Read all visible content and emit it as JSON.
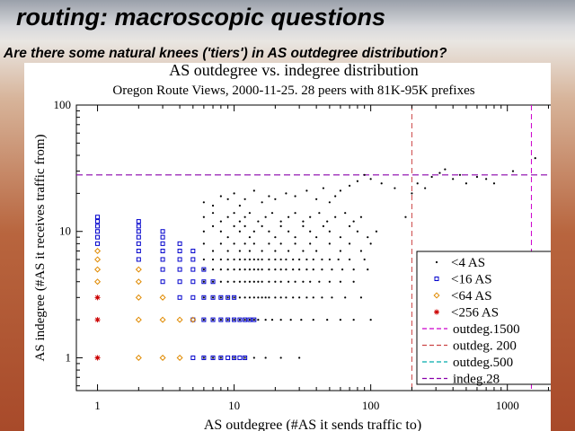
{
  "slide": {
    "title": "routing: macroscopic questions",
    "subtitle": "Are there some natural knees ('tiers') in AS outdegree distribution?"
  },
  "chart_data": {
    "type": "scatter",
    "title": "AS outdegree vs. indegree distribution",
    "subtitle": "Oregon Route Views, 2000-11-25. 28 peers with 81K-95K  prefixes",
    "xlabel": "AS outdegree (#AS it sends traffic to)",
    "ylabel": "AS indegree (#AS it receives traffic from)",
    "x_scale": "log",
    "y_scale": "log",
    "xlim": [
      0.7,
      2900
    ],
    "ylim": [
      0.55,
      100
    ],
    "x_ticks": [
      {
        "value": 1,
        "label": "1"
      },
      {
        "value": 10,
        "label": "10"
      },
      {
        "value": 100,
        "label": "100"
      },
      {
        "value": 1000,
        "label": "1000"
      }
    ],
    "y_ticks": [
      {
        "value": 1,
        "label": "1"
      },
      {
        "value": 10,
        "label": "10"
      },
      {
        "value": 100,
        "label": "100"
      }
    ],
    "grid": false,
    "legend_position": "lower-right",
    "series": [
      {
        "name": "<4 AS",
        "marker": "dot",
        "color": "#000000",
        "points": [
          [
            6,
            17
          ],
          [
            7,
            16
          ],
          [
            8,
            19
          ],
          [
            9,
            18
          ],
          [
            10,
            20
          ],
          [
            11,
            16
          ],
          [
            12,
            18
          ],
          [
            14,
            21
          ],
          [
            16,
            17
          ],
          [
            18,
            19
          ],
          [
            20,
            18
          ],
          [
            24,
            20
          ],
          [
            28,
            19
          ],
          [
            34,
            21
          ],
          [
            40,
            18
          ],
          [
            45,
            22
          ],
          [
            50,
            17
          ],
          [
            55,
            19
          ],
          [
            60,
            21
          ],
          [
            70,
            23
          ],
          [
            80,
            25
          ],
          [
            90,
            28
          ],
          [
            100,
            26
          ],
          [
            120,
            24
          ],
          [
            150,
            22
          ],
          [
            6,
            13
          ],
          [
            7,
            14
          ],
          [
            8,
            12
          ],
          [
            9,
            13
          ],
          [
            10,
            14
          ],
          [
            11,
            12
          ],
          [
            12,
            13
          ],
          [
            13,
            14
          ],
          [
            15,
            12
          ],
          [
            17,
            13
          ],
          [
            19,
            14
          ],
          [
            22,
            12
          ],
          [
            25,
            13
          ],
          [
            28,
            14
          ],
          [
            32,
            12
          ],
          [
            36,
            13
          ],
          [
            42,
            14
          ],
          [
            48,
            12
          ],
          [
            55,
            13
          ],
          [
            65,
            14
          ],
          [
            75,
            12
          ],
          [
            85,
            13
          ],
          [
            6,
            10
          ],
          [
            7,
            11
          ],
          [
            8,
            10
          ],
          [
            9,
            9
          ],
          [
            10,
            11
          ],
          [
            11,
            10
          ],
          [
            12,
            11
          ],
          [
            13,
            9
          ],
          [
            14,
            10
          ],
          [
            16,
            11
          ],
          [
            18,
            10
          ],
          [
            20,
            9
          ],
          [
            22,
            11
          ],
          [
            25,
            10
          ],
          [
            28,
            9
          ],
          [
            32,
            11
          ],
          [
            36,
            10
          ],
          [
            40,
            9
          ],
          [
            45,
            11
          ],
          [
            50,
            10
          ],
          [
            60,
            9
          ],
          [
            70,
            11
          ],
          [
            80,
            10
          ],
          [
            95,
            9
          ],
          [
            110,
            10
          ],
          [
            6,
            8
          ],
          [
            7,
            7
          ],
          [
            8,
            8
          ],
          [
            9,
            7
          ],
          [
            10,
            8
          ],
          [
            11,
            7
          ],
          [
            12,
            8
          ],
          [
            13,
            7
          ],
          [
            14,
            8
          ],
          [
            16,
            7
          ],
          [
            18,
            8
          ],
          [
            20,
            7
          ],
          [
            22,
            8
          ],
          [
            25,
            7
          ],
          [
            28,
            8
          ],
          [
            32,
            7
          ],
          [
            36,
            8
          ],
          [
            40,
            7
          ],
          [
            50,
            8
          ],
          [
            60,
            7
          ],
          [
            70,
            8
          ],
          [
            85,
            7
          ],
          [
            100,
            8
          ],
          [
            6,
            6
          ],
          [
            7,
            6
          ],
          [
            8,
            6
          ],
          [
            9,
            6
          ],
          [
            10,
            6
          ],
          [
            11,
            6
          ],
          [
            12,
            6
          ],
          [
            13,
            6
          ],
          [
            14,
            6
          ],
          [
            15,
            6
          ],
          [
            16,
            6
          ],
          [
            18,
            6
          ],
          [
            20,
            6
          ],
          [
            22,
            6
          ],
          [
            24,
            6
          ],
          [
            27,
            6
          ],
          [
            30,
            6
          ],
          [
            34,
            6
          ],
          [
            38,
            6
          ],
          [
            44,
            6
          ],
          [
            50,
            6
          ],
          [
            58,
            6
          ],
          [
            70,
            6
          ],
          [
            90,
            6
          ],
          [
            6,
            5
          ],
          [
            7,
            5
          ],
          [
            8,
            5
          ],
          [
            9,
            5
          ],
          [
            10,
            5
          ],
          [
            11,
            5
          ],
          [
            12,
            5
          ],
          [
            13,
            5
          ],
          [
            14,
            5
          ],
          [
            15,
            5
          ],
          [
            16,
            5
          ],
          [
            18,
            5
          ],
          [
            20,
            5
          ],
          [
            22,
            5
          ],
          [
            24,
            5
          ],
          [
            27,
            5
          ],
          [
            30,
            5
          ],
          [
            34,
            5
          ],
          [
            38,
            5
          ],
          [
            44,
            5
          ],
          [
            52,
            5
          ],
          [
            62,
            5
          ],
          [
            75,
            5
          ],
          [
            95,
            5
          ],
          [
            6,
            4
          ],
          [
            7,
            4
          ],
          [
            8,
            4
          ],
          [
            9,
            4
          ],
          [
            10,
            4
          ],
          [
            11,
            4
          ],
          [
            12,
            4
          ],
          [
            13,
            4
          ],
          [
            14,
            4
          ],
          [
            15,
            4
          ],
          [
            16,
            4
          ],
          [
            18,
            4
          ],
          [
            20,
            4
          ],
          [
            22,
            4
          ],
          [
            25,
            4
          ],
          [
            28,
            4
          ],
          [
            32,
            4
          ],
          [
            36,
            4
          ],
          [
            42,
            4
          ],
          [
            50,
            4
          ],
          [
            60,
            4
          ],
          [
            75,
            4
          ],
          [
            6,
            3
          ],
          [
            7,
            3
          ],
          [
            8,
            3
          ],
          [
            9,
            3
          ],
          [
            10,
            3
          ],
          [
            11,
            3
          ],
          [
            12,
            3
          ],
          [
            13,
            3
          ],
          [
            14,
            3
          ],
          [
            15,
            3
          ],
          [
            16,
            3
          ],
          [
            17,
            3
          ],
          [
            18,
            3
          ],
          [
            20,
            3
          ],
          [
            22,
            3
          ],
          [
            24,
            3
          ],
          [
            27,
            3
          ],
          [
            30,
            3
          ],
          [
            34,
            3
          ],
          [
            38,
            3
          ],
          [
            44,
            3
          ],
          [
            52,
            3
          ],
          [
            65,
            3
          ],
          [
            85,
            3
          ],
          [
            6,
            2
          ],
          [
            7,
            2
          ],
          [
            8,
            2
          ],
          [
            9,
            2
          ],
          [
            10,
            2
          ],
          [
            11,
            2
          ],
          [
            12,
            2
          ],
          [
            13,
            2
          ],
          [
            14,
            2
          ],
          [
            15,
            2
          ],
          [
            17,
            2
          ],
          [
            19,
            2
          ],
          [
            22,
            2
          ],
          [
            26,
            2
          ],
          [
            31,
            2
          ],
          [
            38,
            2
          ],
          [
            48,
            2
          ],
          [
            60,
            2
          ],
          [
            75,
            2
          ],
          [
            100,
            2
          ],
          [
            6,
            1
          ],
          [
            7,
            1
          ],
          [
            8,
            1
          ],
          [
            10,
            1
          ],
          [
            12,
            1
          ],
          [
            14,
            1
          ],
          [
            17,
            1
          ],
          [
            22,
            1
          ],
          [
            30,
            1
          ],
          [
            200,
            20
          ],
          [
            220,
            24
          ],
          [
            250,
            22
          ],
          [
            280,
            27
          ],
          [
            320,
            29
          ],
          [
            350,
            31
          ],
          [
            400,
            26
          ],
          [
            450,
            28
          ],
          [
            500,
            24
          ],
          [
            600,
            27
          ],
          [
            700,
            26
          ],
          [
            800,
            24
          ],
          [
            1100,
            30
          ],
          [
            1600,
            38
          ],
          [
            2200,
            47
          ],
          [
            180,
            13
          ]
        ]
      },
      {
        "name": "<16 AS",
        "marker": "square",
        "color": "#0000cc",
        "points": [
          [
            1,
            8
          ],
          [
            1,
            9
          ],
          [
            1,
            10
          ],
          [
            1,
            11
          ],
          [
            1,
            12
          ],
          [
            2,
            8
          ],
          [
            2,
            9
          ],
          [
            2,
            10
          ],
          [
            2,
            11
          ],
          [
            2,
            12
          ],
          [
            3,
            6
          ],
          [
            3,
            7
          ],
          [
            3,
            8
          ],
          [
            3,
            9
          ],
          [
            3,
            10
          ],
          [
            4,
            5
          ],
          [
            4,
            6
          ],
          [
            4,
            7
          ],
          [
            4,
            8
          ],
          [
            5,
            4
          ],
          [
            5,
            5
          ],
          [
            5,
            6
          ],
          [
            5,
            7
          ],
          [
            6,
            3
          ],
          [
            6,
            4
          ],
          [
            6,
            5
          ],
          [
            7,
            3
          ],
          [
            7,
            4
          ],
          [
            8,
            2
          ],
          [
            8,
            3
          ],
          [
            9,
            2
          ],
          [
            9,
            3
          ],
          [
            10,
            2
          ],
          [
            10,
            3
          ],
          [
            11,
            2
          ],
          [
            12,
            2
          ],
          [
            13,
            2
          ],
          [
            14,
            2
          ],
          [
            6,
            2
          ],
          [
            7,
            2
          ],
          [
            5,
            1
          ],
          [
            6,
            1
          ],
          [
            7,
            1
          ],
          [
            8,
            1
          ],
          [
            9,
            1
          ],
          [
            10,
            1
          ],
          [
            11,
            1
          ],
          [
            12,
            1
          ],
          [
            5,
            3
          ],
          [
            5,
            2
          ],
          [
            4,
            3
          ],
          [
            4,
            4
          ],
          [
            3,
            5
          ],
          [
            3,
            4
          ],
          [
            2,
            7
          ],
          [
            2,
            6
          ],
          [
            1,
            13
          ]
        ]
      },
      {
        "name": "<64 AS",
        "marker": "diamond",
        "color": "#e08a00",
        "points": [
          [
            1,
            5
          ],
          [
            1,
            6
          ],
          [
            1,
            7
          ],
          [
            1,
            4
          ],
          [
            2,
            4
          ],
          [
            2,
            5
          ],
          [
            2,
            3
          ],
          [
            3,
            3
          ],
          [
            3,
            2
          ],
          [
            4,
            2
          ],
          [
            5,
            2
          ],
          [
            2,
            2
          ],
          [
            2,
            1
          ],
          [
            3,
            1
          ],
          [
            4,
            1
          ]
        ]
      },
      {
        "name": "<256 AS",
        "marker": "star",
        "color": "#cc0000",
        "points": [
          [
            1,
            1
          ],
          [
            1,
            2
          ],
          [
            1,
            3
          ]
        ]
      }
    ],
    "reference_lines": [
      {
        "name": "outdeg.1500",
        "orientation": "vertical",
        "value": 1500,
        "color": "#cc00cc"
      },
      {
        "name": "outdeg. 200",
        "orientation": "vertical",
        "value": 200,
        "color": "#cc4444"
      },
      {
        "name": "outdeg.500",
        "orientation": "vertical",
        "value": 500,
        "color": "#00aaaa"
      },
      {
        "name": "indeg.28",
        "orientation": "horizontal",
        "value": 28,
        "color": "#8800aa"
      }
    ]
  }
}
